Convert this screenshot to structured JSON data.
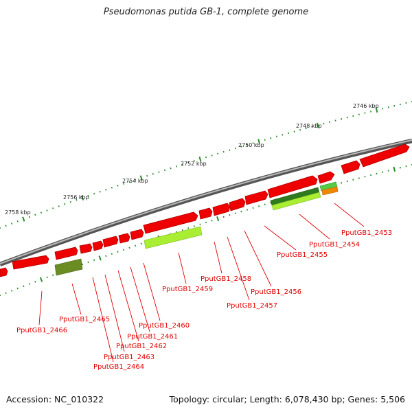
{
  "title": "Pseudomonas putida GB-1, complete genome",
  "footer": {
    "accession": "Accession: NC_010322",
    "summary": "Topology: circular; Length: 6,078,430 bp; Genes: 5,506"
  },
  "kbp_labels": [
    "2746 kbp",
    "2748 kbp",
    "2750 kbp",
    "2752 kbp",
    "2754 kbp",
    "2756 kbp",
    "2758 kbp"
  ],
  "gene_labels": [
    "PputGB1_2453",
    "PputGB1_2454",
    "PputGB1_2455",
    "PputGB1_2456",
    "PputGB1_2457",
    "PputGB1_2458",
    "PputGB1_2459",
    "PputGB1_2460",
    "PputGB1_2461",
    "PputGB1_2462",
    "PputGB1_2463",
    "PputGB1_2464",
    "PputGB1_2465",
    "PputGB1_2466"
  ],
  "colors": {
    "backbone": "#8a8a8a",
    "cds": "#ee0000",
    "cds_dark": "#b00000",
    "rna_light": "#aaee33",
    "rna_dark": "#5a8a1a",
    "tick": "#2a8a2a",
    "label": "#e00000",
    "orange": "#ee8800"
  }
}
